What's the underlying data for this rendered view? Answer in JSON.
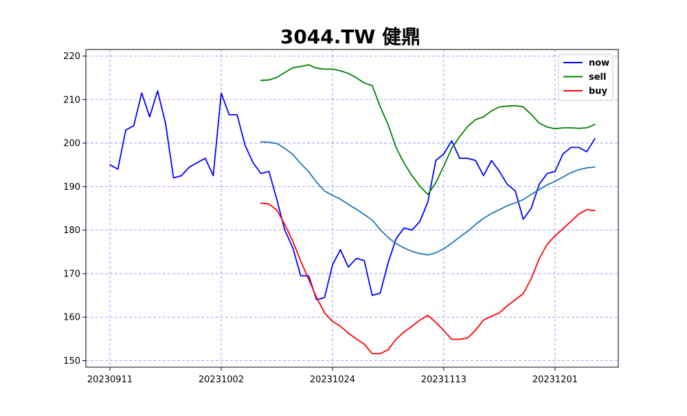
{
  "chart_data": {
    "type": "line",
    "title": "3044.TW 健鼎",
    "xlabel": "",
    "ylabel": "",
    "ylim": [
      148.5,
      221.5
    ],
    "yticks": [
      150,
      160,
      170,
      180,
      190,
      200,
      210,
      220
    ],
    "xticks": [
      {
        "index": 0,
        "label": "20230911"
      },
      {
        "index": 14,
        "label": "20231002"
      },
      {
        "index": 28,
        "label": "20231024"
      },
      {
        "index": 42,
        "label": "20231113"
      },
      {
        "index": 56,
        "label": "20231201"
      }
    ],
    "grid": true,
    "legend_position": "top-right",
    "legend": [
      "now",
      "sell",
      "buy"
    ],
    "series": [
      {
        "name": "now",
        "color": "#0000ff",
        "start": 0,
        "values": [
          195.0,
          194.0,
          203.0,
          204.0,
          211.5,
          206.0,
          212.0,
          204.5,
          192.0,
          192.5,
          194.5,
          195.5,
          196.5,
          192.5,
          211.5,
          206.5,
          206.5,
          199.5,
          195.5,
          193.0,
          193.5,
          187.0,
          180.0,
          176.0,
          169.5,
          169.5,
          164.0,
          164.5,
          172.0,
          175.5,
          171.5,
          173.5,
          173.0,
          165.0,
          165.5,
          172.5,
          178.0,
          180.5,
          180.0,
          182.0,
          186.5,
          196.0,
          197.5,
          200.5,
          196.5,
          196.5,
          196.0,
          192.5,
          196.0,
          193.5,
          190.5,
          189.0,
          182.5,
          185.0,
          190.5,
          193.0,
          193.5,
          197.5,
          199.0,
          199.0,
          198.0,
          201.0
        ]
      },
      {
        "name": "sell",
        "color": "#008000",
        "start": 19,
        "values": [
          214.4,
          214.5,
          215.1,
          216.2,
          217.3,
          217.6,
          218.0,
          217.2,
          217.0,
          217.0,
          216.6,
          216.0,
          215.0,
          213.8,
          213.2,
          208.4,
          204.2,
          199.0,
          195.4,
          192.5,
          190.1,
          188.2,
          190.9,
          194.7,
          198.8,
          201.5,
          203.8,
          205.4,
          206.0,
          207.4,
          208.3,
          208.5,
          208.6,
          208.3,
          206.6,
          204.6,
          203.7,
          203.3,
          203.5,
          203.5,
          203.4,
          203.5,
          204.3
        ]
      },
      {
        "name": "",
        "color": "#1f77b4",
        "start": 19,
        "values": [
          200.3,
          200.2,
          199.9,
          198.8,
          197.4,
          195.3,
          193.4,
          191.0,
          189.0,
          188.0,
          187.1,
          185.9,
          184.8,
          183.6,
          182.3,
          180.1,
          178.3,
          176.9,
          175.9,
          175.1,
          174.6,
          174.3,
          174.8,
          175.7,
          177.0,
          178.4,
          179.7,
          181.3,
          182.7,
          183.8,
          184.7,
          185.6,
          186.3,
          187.0,
          188.2,
          189.3,
          190.4,
          191.2,
          192.2,
          193.2,
          193.9,
          194.3,
          194.5
        ]
      },
      {
        "name": "buy",
        "color": "#ff0000",
        "start": 19,
        "values": [
          186.2,
          186.0,
          184.6,
          181.3,
          177.5,
          172.9,
          168.7,
          164.5,
          161.0,
          159.0,
          157.9,
          156.3,
          155.0,
          153.8,
          151.6,
          151.6,
          152.5,
          154.9,
          156.6,
          157.9,
          159.3,
          160.4,
          158.8,
          156.9,
          154.9,
          154.9,
          155.2,
          157.0,
          159.3,
          160.2,
          161.0,
          162.6,
          164.0,
          165.4,
          168.8,
          173.4,
          176.7,
          178.7,
          180.3,
          182.0,
          183.7,
          184.7,
          184.5
        ]
      }
    ]
  }
}
